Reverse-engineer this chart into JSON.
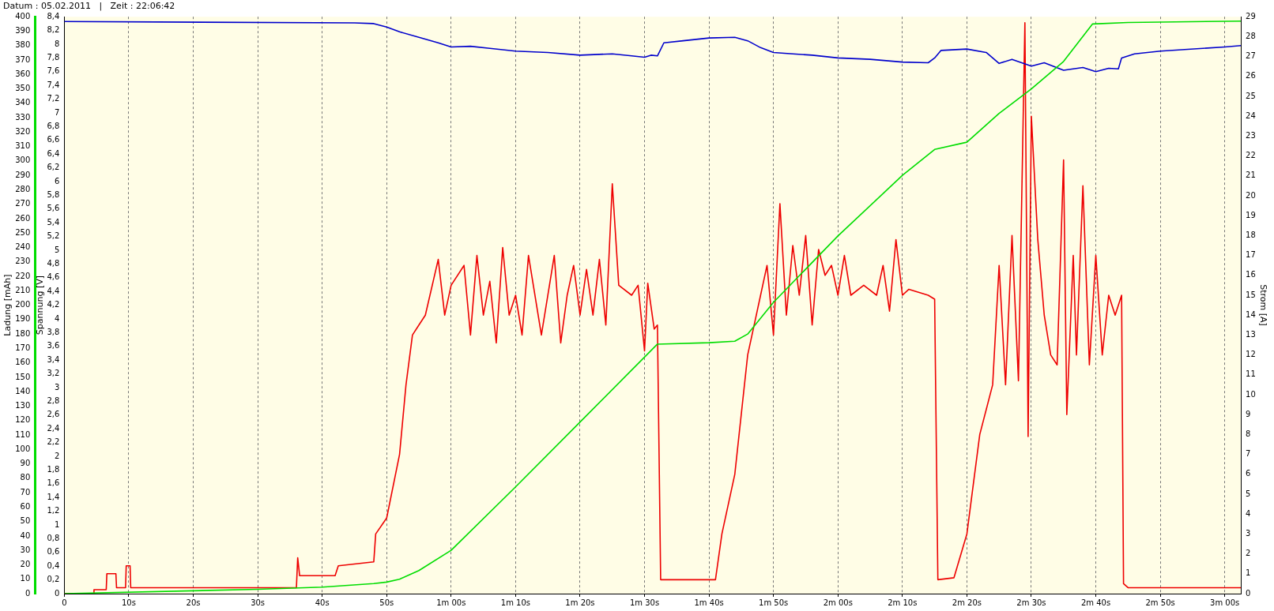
{
  "chart_data": {
    "type": "line",
    "title": "Datum : 05.02.2011   |   Zeit : 22:06:42",
    "ylabel": "Ladung [mAh]",
    "y2label": "Spannung [V]",
    "y3label": "Strom [A]",
    "grid": "x",
    "xlim": [
      0,
      182.5
    ],
    "xticks": [
      {
        "value": 0,
        "label": "0"
      },
      {
        "value": 10,
        "label": "10s"
      },
      {
        "value": 20,
        "label": "20s"
      },
      {
        "value": 30,
        "label": "30s"
      },
      {
        "value": 40,
        "label": "40s"
      },
      {
        "value": 50,
        "label": "50s"
      },
      {
        "value": 60,
        "label": "1m 00s"
      },
      {
        "value": 70,
        "label": "1m 10s"
      },
      {
        "value": 80,
        "label": "1m 20s"
      },
      {
        "value": 90,
        "label": "1m 30s"
      },
      {
        "value": 100,
        "label": "1m 40s"
      },
      {
        "value": 110,
        "label": "1m 50s"
      },
      {
        "value": 120,
        "label": "2m 00s"
      },
      {
        "value": 130,
        "label": "2m 10s"
      },
      {
        "value": 140,
        "label": "2m 20s"
      },
      {
        "value": 150,
        "label": "2m 30s"
      },
      {
        "value": 160,
        "label": "2m 40s"
      },
      {
        "value": 170,
        "label": "2m 50s"
      },
      {
        "value": 180,
        "label": "3m 00s"
      }
    ],
    "ylim": [
      0,
      400
    ],
    "yticks": [
      0,
      10,
      20,
      30,
      40,
      50,
      60,
      70,
      80,
      90,
      100,
      110,
      120,
      130,
      140,
      150,
      160,
      170,
      180,
      190,
      200,
      210,
      220,
      230,
      240,
      250,
      260,
      270,
      280,
      290,
      300,
      310,
      320,
      330,
      340,
      350,
      360,
      370,
      380,
      390,
      400
    ],
    "y2lim": [
      0,
      8.4
    ],
    "y2ticks": [
      {
        "value": 0,
        "label": "0"
      },
      {
        "value": 0.2,
        "label": "0,2"
      },
      {
        "value": 0.4,
        "label": "0,4"
      },
      {
        "value": 0.6,
        "label": "0,6"
      },
      {
        "value": 0.8,
        "label": "0,8"
      },
      {
        "value": 1,
        "label": "1"
      },
      {
        "value": 1.2,
        "label": "1,2"
      },
      {
        "value": 1.4,
        "label": "1,4"
      },
      {
        "value": 1.6,
        "label": "1,6"
      },
      {
        "value": 1.8,
        "label": "1,8"
      },
      {
        "value": 2,
        "label": "2"
      },
      {
        "value": 2.2,
        "label": "2,2"
      },
      {
        "value": 2.4,
        "label": "2,4"
      },
      {
        "value": 2.6,
        "label": "2,6"
      },
      {
        "value": 2.8,
        "label": "2,8"
      },
      {
        "value": 3,
        "label": "3"
      },
      {
        "value": 3.2,
        "label": "3,2"
      },
      {
        "value": 3.4,
        "label": "3,4"
      },
      {
        "value": 3.6,
        "label": "3,6"
      },
      {
        "value": 3.8,
        "label": "3,8"
      },
      {
        "value": 4,
        "label": "4"
      },
      {
        "value": 4.2,
        "label": "4,2"
      },
      {
        "value": 4.4,
        "label": "4,4"
      },
      {
        "value": 4.6,
        "label": "4,6"
      },
      {
        "value": 4.8,
        "label": "4,8"
      },
      {
        "value": 5,
        "label": "5"
      },
      {
        "value": 5.2,
        "label": "5,2"
      },
      {
        "value": 5.4,
        "label": "5,4"
      },
      {
        "value": 5.6,
        "label": "5,6"
      },
      {
        "value": 5.8,
        "label": "5,8"
      },
      {
        "value": 6,
        "label": "6"
      },
      {
        "value": 6.2,
        "label": "6,2"
      },
      {
        "value": 6.4,
        "label": "6,4"
      },
      {
        "value": 6.6,
        "label": "6,6"
      },
      {
        "value": 6.8,
        "label": "6,8"
      },
      {
        "value": 7,
        "label": "7"
      },
      {
        "value": 7.2,
        "label": "7,2"
      },
      {
        "value": 7.4,
        "label": "7,4"
      },
      {
        "value": 7.6,
        "label": "7,6"
      },
      {
        "value": 7.8,
        "label": "7,8"
      },
      {
        "value": 8,
        "label": "8"
      },
      {
        "value": 8.2,
        "label": "8,2"
      },
      {
        "value": 8.4,
        "label": "8,4"
      }
    ],
    "y3lim": [
      0,
      29
    ],
    "y3ticks": [
      0,
      1,
      2,
      3,
      4,
      5,
      6,
      7,
      8,
      9,
      10,
      11,
      12,
      13,
      14,
      15,
      16,
      17,
      18,
      19,
      20,
      21,
      22,
      23,
      24,
      25,
      26,
      27,
      28,
      29
    ],
    "series": [
      {
        "color": "#00dd00",
        "axis": "y",
        "x": [
          0,
          30,
          40,
          48,
          50,
          52,
          55,
          60,
          70,
          80,
          92,
          100,
          104,
          106,
          110,
          120,
          130,
          135,
          140,
          145,
          150,
          155,
          159.5,
          165,
          182.5
        ],
        "values": [
          0,
          3,
          4.5,
          7,
          8,
          10,
          16,
          30,
          74,
          119,
          173,
          174,
          175,
          180,
          202,
          248,
          290,
          308,
          313,
          333,
          350,
          369,
          395,
          396,
          397
        ]
      },
      {
        "color": "#0000cc",
        "axis": "y2",
        "x": [
          0,
          45,
          48,
          50,
          52,
          55,
          58,
          60,
          63,
          66,
          70,
          75,
          80,
          85,
          88,
          90,
          91,
          92,
          93,
          96,
          100,
          104,
          106,
          108,
          110,
          113,
          116,
          120,
          125,
          130,
          134,
          135,
          136,
          140,
          143,
          145,
          147,
          150,
          152,
          155,
          158,
          160,
          162,
          163.5,
          164,
          166,
          170,
          180,
          182.5
        ],
        "values": [
          8.33,
          8.31,
          8.3,
          8.25,
          8.18,
          8.1,
          8.02,
          7.96,
          7.97,
          7.94,
          7.9,
          7.88,
          7.84,
          7.86,
          7.83,
          7.81,
          7.84,
          7.83,
          8.02,
          8.05,
          8.09,
          8.1,
          8.05,
          7.95,
          7.88,
          7.86,
          7.84,
          7.8,
          7.78,
          7.74,
          7.73,
          7.8,
          7.91,
          7.93,
          7.88,
          7.72,
          7.78,
          7.68,
          7.73,
          7.62,
          7.66,
          7.6,
          7.65,
          7.64,
          7.8,
          7.86,
          7.9,
          7.96,
          7.98
        ]
      },
      {
        "color": "#ee0000",
        "axis": "y3",
        "x": [
          0,
          4.5,
          4.6,
          6.5,
          6.6,
          8,
          8.1,
          9.5,
          9.6,
          10.2,
          10.3,
          20,
          36,
          36.2,
          36.5,
          42,
          42.5,
          48,
          48.3,
          50,
          52,
          53,
          54,
          55,
          56,
          58,
          59,
          60,
          62,
          63,
          64,
          65,
          66,
          67,
          68,
          69,
          70,
          71,
          72,
          74,
          76,
          77,
          78,
          79,
          80,
          81,
          82,
          83,
          84,
          85,
          86,
          88,
          89,
          90,
          90.5,
          91.5,
          92,
          92.5,
          100,
          101,
          102,
          104,
          106,
          107,
          108,
          109,
          110,
          111,
          112,
          113,
          114,
          115,
          116,
          117,
          118,
          119,
          120,
          121,
          122,
          124,
          126,
          127,
          128,
          129,
          130,
          131,
          134,
          135,
          135.5,
          138,
          140,
          142,
          144,
          145,
          146,
          147,
          148,
          149,
          149.5,
          150,
          151,
          152,
          153,
          154,
          155,
          155.5,
          156.5,
          157,
          158,
          159,
          160,
          161,
          162,
          163,
          164,
          164.3,
          165,
          182.5
        ],
        "values": [
          0,
          0,
          0.2,
          0.2,
          1,
          1,
          0.3,
          0.3,
          1.4,
          1.4,
          0.3,
          0.3,
          0.3,
          1.8,
          0.9,
          0.9,
          1.4,
          1.6,
          3,
          3.8,
          7,
          10.5,
          13,
          13.5,
          14,
          16.8,
          14,
          15.5,
          16.5,
          13,
          17,
          14,
          15.7,
          12.6,
          17.4,
          14,
          15,
          13,
          17,
          13,
          17,
          12.6,
          15,
          16.5,
          14,
          16.3,
          14,
          16.8,
          13.5,
          20.6,
          15.5,
          15,
          15.5,
          12.2,
          15.6,
          13.3,
          13.5,
          0.7,
          0.7,
          0.7,
          3,
          6,
          12,
          13.5,
          15,
          16.5,
          13,
          19.6,
          14,
          17.5,
          15,
          18,
          13.5,
          17.3,
          16,
          16.5,
          15,
          17,
          15,
          15.5,
          15,
          16.5,
          14.2,
          17.8,
          15,
          15.3,
          15,
          14.8,
          0.7,
          0.8,
          3,
          8,
          10.5,
          16.5,
          10.5,
          18,
          10.7,
          28.7,
          7.9,
          24,
          17.8,
          14,
          12,
          11.5,
          21.8,
          9,
          17,
          12,
          20.5,
          11.5,
          17,
          12,
          15,
          14,
          15,
          0.5,
          0.3,
          0.3
        ]
      }
    ]
  }
}
